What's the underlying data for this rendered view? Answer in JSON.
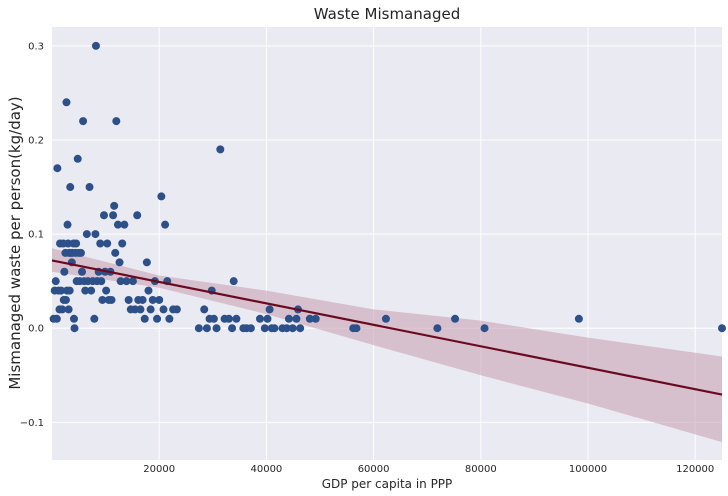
{
  "chart_data": {
    "type": "scatter",
    "title": "Waste Mismanaged",
    "xlabel": "GDP per capita in PPP",
    "ylabel": "Mismanaged waste per person(kg/day)",
    "xlim": [
      0,
      125000
    ],
    "ylim": [
      -0.14,
      0.32
    ],
    "xticks": [
      20000,
      40000,
      60000,
      80000,
      100000,
      120000
    ],
    "yticks": [
      -0.1,
      0.0,
      0.1,
      0.2,
      0.3
    ],
    "ytick_labels": [
      "−0.1",
      "0.0",
      "0.1",
      "0.2",
      "0.3"
    ],
    "grid": true,
    "background": "#eaeaf2",
    "point_color": "#2d5089",
    "line_color": "#6b0a1f",
    "band_color": "#c9a3b5",
    "regression": {
      "intercept": 0.072,
      "slope_per_unit": -1.14e-06,
      "ci_at_x": [
        0,
        20000,
        40000,
        60000,
        80000,
        100000,
        125000
      ],
      "ci_low": [
        0.06,
        0.043,
        0.015,
        -0.018,
        -0.05,
        -0.08,
        -0.121
      ],
      "ci_high": [
        0.085,
        0.056,
        0.04,
        0.02,
        0.008,
        -0.01,
        -0.03
      ]
    },
    "points": [
      [
        300,
        0.01
      ],
      [
        500,
        0.04
      ],
      [
        700,
        0.05
      ],
      [
        900,
        0.01
      ],
      [
        1000,
        0.17
      ],
      [
        1200,
        0.04
      ],
      [
        1400,
        0.02
      ],
      [
        1500,
        0.09
      ],
      [
        1700,
        0.04
      ],
      [
        1900,
        0.02
      ],
      [
        2100,
        0.09
      ],
      [
        2200,
        0.03
      ],
      [
        2300,
        0.06
      ],
      [
        2500,
        0.08
      ],
      [
        2600,
        0.03
      ],
      [
        2700,
        0.24
      ],
      [
        2800,
        0.04
      ],
      [
        2900,
        0.11
      ],
      [
        3000,
        0.09
      ],
      [
        3100,
        0.02
      ],
      [
        3200,
        0.08
      ],
      [
        3300,
        0.04
      ],
      [
        3400,
        0.15
      ],
      [
        3500,
        0.08
      ],
      [
        3700,
        0.07
      ],
      [
        3800,
        0.08
      ],
      [
        4000,
        0.09
      ],
      [
        4100,
        0.01
      ],
      [
        4200,
        0.0
      ],
      [
        4400,
        0.08
      ],
      [
        4500,
        0.09
      ],
      [
        4600,
        0.05
      ],
      [
        4800,
        0.18
      ],
      [
        5000,
        0.08
      ],
      [
        5200,
        0.05
      ],
      [
        5400,
        0.08
      ],
      [
        5600,
        0.06
      ],
      [
        5800,
        0.22
      ],
      [
        6000,
        0.05
      ],
      [
        6200,
        0.04
      ],
      [
        6500,
        0.1
      ],
      [
        6700,
        0.05
      ],
      [
        7000,
        0.15
      ],
      [
        7300,
        0.04
      ],
      [
        7600,
        0.05
      ],
      [
        7900,
        0.01
      ],
      [
        8100,
        0.1
      ],
      [
        8200,
        0.3
      ],
      [
        8400,
        0.05
      ],
      [
        8700,
        0.06
      ],
      [
        9000,
        0.09
      ],
      [
        9200,
        0.05
      ],
      [
        9400,
        0.03
      ],
      [
        9700,
        0.12
      ],
      [
        9900,
        0.06
      ],
      [
        10100,
        0.04
      ],
      [
        10300,
        0.09
      ],
      [
        10600,
        0.03
      ],
      [
        10900,
        0.06
      ],
      [
        11100,
        0.03
      ],
      [
        11400,
        0.12
      ],
      [
        11600,
        0.13
      ],
      [
        11800,
        0.08
      ],
      [
        12000,
        0.22
      ],
      [
        12300,
        0.11
      ],
      [
        12600,
        0.07
      ],
      [
        12800,
        0.05
      ],
      [
        13100,
        0.09
      ],
      [
        13500,
        0.11
      ],
      [
        13900,
        0.05
      ],
      [
        14300,
        0.03
      ],
      [
        14700,
        0.02
      ],
      [
        15100,
        0.05
      ],
      [
        15500,
        0.02
      ],
      [
        15900,
        0.12
      ],
      [
        16100,
        0.03
      ],
      [
        16500,
        0.02
      ],
      [
        16900,
        0.03
      ],
      [
        17300,
        0.01
      ],
      [
        17700,
        0.07
      ],
      [
        18000,
        0.04
      ],
      [
        18400,
        0.02
      ],
      [
        18800,
        0.03
      ],
      [
        19200,
        0.05
      ],
      [
        19600,
        0.01
      ],
      [
        20000,
        0.03
      ],
      [
        20400,
        0.14
      ],
      [
        20800,
        0.02
      ],
      [
        21100,
        0.11
      ],
      [
        21500,
        0.05
      ],
      [
        21900,
        0.01
      ],
      [
        22600,
        0.02
      ],
      [
        23300,
        0.02
      ],
      [
        27400,
        0.0
      ],
      [
        28400,
        0.02
      ],
      [
        28900,
        0.0
      ],
      [
        29400,
        0.01
      ],
      [
        29800,
        0.04
      ],
      [
        30200,
        0.01
      ],
      [
        30700,
        0.0
      ],
      [
        31400,
        0.19
      ],
      [
        32200,
        0.01
      ],
      [
        33000,
        0.01
      ],
      [
        33600,
        0.0
      ],
      [
        33900,
        0.05
      ],
      [
        34400,
        0.01
      ],
      [
        35700,
        0.0
      ],
      [
        36300,
        0.0
      ],
      [
        37100,
        0.0
      ],
      [
        38800,
        0.01
      ],
      [
        39700,
        0.0
      ],
      [
        40200,
        0.01
      ],
      [
        40600,
        0.02
      ],
      [
        41000,
        0.0
      ],
      [
        41500,
        0.0
      ],
      [
        43000,
        0.0
      ],
      [
        43800,
        0.0
      ],
      [
        44200,
        0.01
      ],
      [
        44900,
        0.0
      ],
      [
        45600,
        0.01
      ],
      [
        45900,
        0.02
      ],
      [
        46300,
        0.0
      ],
      [
        48100,
        0.01
      ],
      [
        49200,
        0.01
      ],
      [
        56200,
        0.0
      ],
      [
        56800,
        0.0
      ],
      [
        62300,
        0.01
      ],
      [
        71900,
        0.0
      ],
      [
        75200,
        0.01
      ],
      [
        80700,
        0.0
      ],
      [
        98300,
        0.01
      ],
      [
        125000,
        0.0
      ]
    ]
  }
}
